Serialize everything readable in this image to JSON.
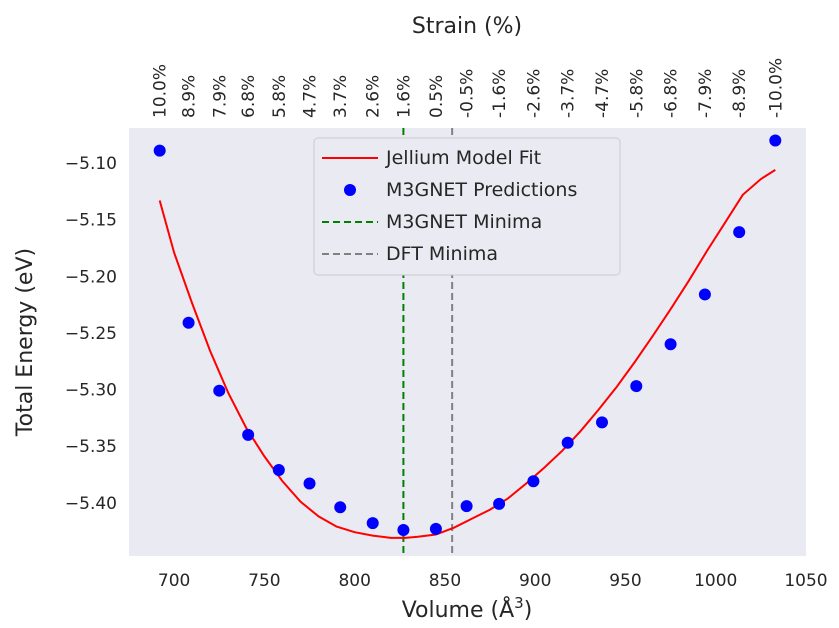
{
  "chart_data": {
    "type": "scatter",
    "xlabel": "Volume (Å",
    "xlabel_sup": "3",
    "xlabel_close": ")",
    "ylabel": "Total Energy (eV)",
    "top_xlabel": "Strain (%)",
    "xlim": [
      675,
      1050
    ],
    "ylim": [
      -5.447,
      -5.069
    ],
    "xticks": [
      {
        "value": 700,
        "label": "700"
      },
      {
        "value": 750,
        "label": "750"
      },
      {
        "value": 800,
        "label": "800"
      },
      {
        "value": 850,
        "label": "850"
      },
      {
        "value": 900,
        "label": "900"
      },
      {
        "value": 950,
        "label": "950"
      },
      {
        "value": 1000,
        "label": "1000"
      },
      {
        "value": 1050,
        "label": "1050"
      }
    ],
    "yticks": [
      {
        "value": -5.1,
        "label": "−5.10"
      },
      {
        "value": -5.15,
        "label": "−5.15"
      },
      {
        "value": -5.2,
        "label": "−5.20"
      },
      {
        "value": -5.25,
        "label": "−5.25"
      },
      {
        "value": -5.3,
        "label": "−5.30"
      },
      {
        "value": -5.35,
        "label": "−5.35"
      },
      {
        "value": -5.4,
        "label": "−5.40"
      }
    ],
    "strain_ticks": [
      {
        "volume": 692,
        "label": "10.0%"
      },
      {
        "volume": 708,
        "label": "8.9%"
      },
      {
        "volume": 725,
        "label": "7.9%"
      },
      {
        "volume": 741,
        "label": "6.8%"
      },
      {
        "volume": 758,
        "label": "5.8%"
      },
      {
        "volume": 775,
        "label": "4.7%"
      },
      {
        "volume": 792,
        "label": "3.7%"
      },
      {
        "volume": 810,
        "label": "2.6%"
      },
      {
        "volume": 827,
        "label": "1.6%"
      },
      {
        "volume": 845,
        "label": "0.5%"
      },
      {
        "volume": 862,
        "label": "-0.5%"
      },
      {
        "volume": 880,
        "label": "-1.6%"
      },
      {
        "volume": 899,
        "label": "-2.6%"
      },
      {
        "volume": 918,
        "label": "-3.7%"
      },
      {
        "volume": 937,
        "label": "-4.7%"
      },
      {
        "volume": 956,
        "label": "-5.8%"
      },
      {
        "volume": 975,
        "label": "-6.8%"
      },
      {
        "volume": 994,
        "label": "-7.9%"
      },
      {
        "volume": 1013,
        "label": "-8.9%"
      },
      {
        "volume": 1033,
        "label": "-10.0%"
      }
    ],
    "series": [
      {
        "name": "Jellium Model Fit",
        "kind": "line",
        "color": "#ff0000",
        "x": [
          692,
          700,
          710,
          720,
          730,
          740,
          750,
          760,
          770,
          780,
          790,
          800,
          810,
          820,
          828,
          835,
          845,
          855,
          865,
          875,
          885,
          895,
          905,
          915,
          925,
          935,
          945,
          955,
          965,
          975,
          985,
          995,
          1005,
          1015,
          1025,
          1033
        ],
        "y": [
          -5.133,
          -5.179,
          -5.224,
          -5.266,
          -5.303,
          -5.334,
          -5.359,
          -5.381,
          -5.399,
          -5.412,
          -5.421,
          -5.426,
          -5.429,
          -5.431,
          -5.431,
          -5.43,
          -5.428,
          -5.422,
          -5.414,
          -5.406,
          -5.396,
          -5.383,
          -5.369,
          -5.354,
          -5.337,
          -5.318,
          -5.298,
          -5.276,
          -5.253,
          -5.229,
          -5.204,
          -5.178,
          -5.153,
          -5.128,
          -5.114,
          -5.106
        ]
      },
      {
        "name": "M3GNET Predictions",
        "kind": "scatter",
        "color": "#0000ff",
        "x": [
          692,
          708,
          725,
          741,
          758,
          775,
          792,
          810,
          827,
          845,
          862,
          880,
          899,
          918,
          937,
          956,
          975,
          994,
          1013,
          1033
        ],
        "y": [
          -5.089,
          -5.241,
          -5.301,
          -5.34,
          -5.371,
          -5.383,
          -5.404,
          -5.418,
          -5.424,
          -5.423,
          -5.403,
          -5.401,
          -5.381,
          -5.347,
          -5.329,
          -5.297,
          -5.26,
          -5.216,
          -5.161,
          -5.08
        ]
      },
      {
        "name": "M3GNET Minima",
        "kind": "vline",
        "color": "#008000",
        "x": 827
      },
      {
        "name": "DFT Minima",
        "kind": "vline",
        "color": "#808080",
        "x": 854
      }
    ],
    "grid": false,
    "legend_position": "top-center",
    "background": "#eaeaf2"
  }
}
